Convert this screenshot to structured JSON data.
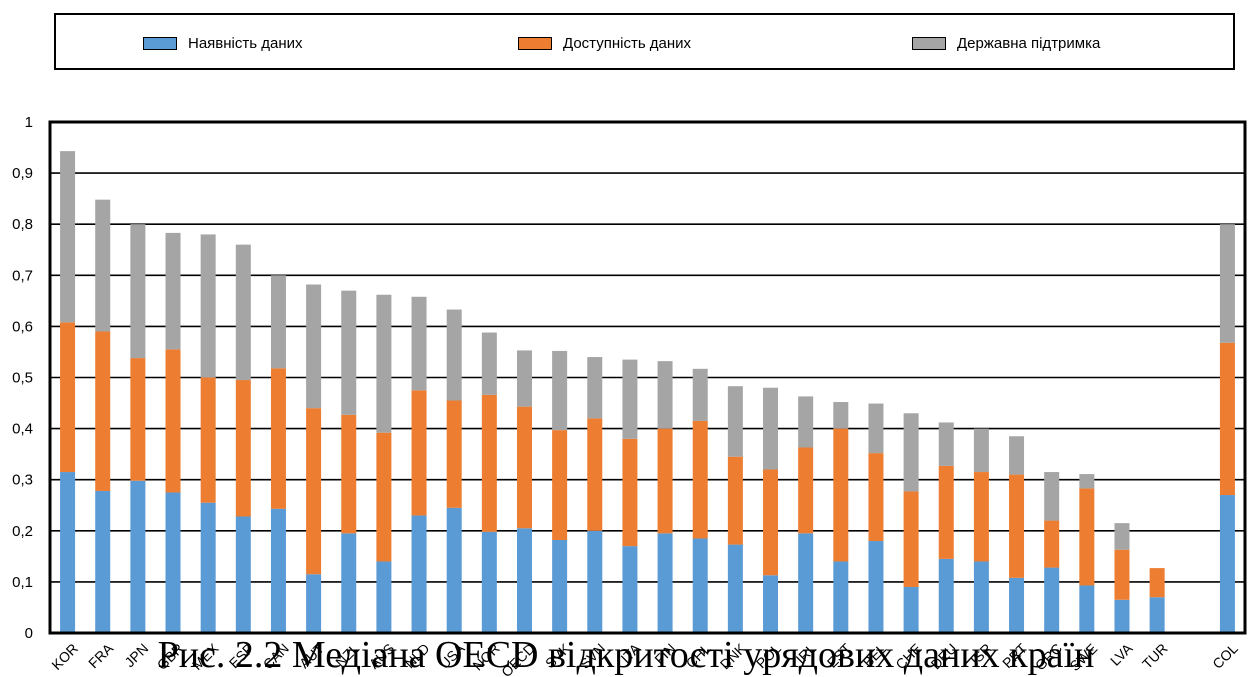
{
  "caption": "Рис. 2.2 Медіана OECD відкритості урядових даних країн",
  "legend": {
    "items": [
      {
        "label": "Наявність даних",
        "color": "#5B9BD5"
      },
      {
        "label": "Доступність даних",
        "color": "#ED7D31"
      },
      {
        "label": "Державна підтримка",
        "color": "#A5A5A5"
      }
    ]
  },
  "chart_data": {
    "type": "bar",
    "stacked": true,
    "categories": [
      "KOR",
      "FRA",
      "JPN",
      "GBR",
      "MEX",
      "ESP",
      "CAN",
      "AUT",
      "NZL",
      "AUS",
      "NLD",
      "USA",
      "NOR",
      "OECD",
      "SVK",
      "SVN",
      "ITA",
      "FIN",
      "CHL",
      "DNK",
      "POL",
      "IRL",
      "EST",
      "BEL",
      "CHE",
      "DEU",
      "ISR",
      "PRT",
      "GRC",
      "SWE",
      "LVA",
      "TUR",
      "",
      "COL"
    ],
    "series": [
      {
        "name": "Наявність даних",
        "color": "#5B9BD5",
        "values": [
          0.315,
          0.278,
          0.298,
          0.275,
          0.255,
          0.228,
          0.243,
          0.115,
          0.195,
          0.14,
          0.23,
          0.245,
          0.198,
          0.205,
          0.182,
          0.2,
          0.17,
          0.195,
          0.185,
          0.173,
          0.113,
          0.195,
          0.14,
          0.18,
          0.09,
          0.145,
          0.14,
          0.108,
          0.128,
          0.093,
          0.065,
          0.07,
          null,
          0.27
        ]
      },
      {
        "name": "Доступність даних",
        "color": "#ED7D31",
        "values": [
          0.293,
          0.312,
          0.24,
          0.28,
          0.245,
          0.267,
          0.275,
          0.325,
          0.232,
          0.252,
          0.245,
          0.21,
          0.268,
          0.238,
          0.215,
          0.22,
          0.21,
          0.205,
          0.23,
          0.172,
          0.207,
          0.168,
          0.26,
          0.172,
          0.187,
          0.182,
          0.175,
          0.202,
          0.092,
          0.19,
          0.098,
          0.057,
          null,
          0.298
        ]
      },
      {
        "name": "Державна підтримка",
        "color": "#A5A5A5",
        "values": [
          0.335,
          0.258,
          0.262,
          0.228,
          0.28,
          0.265,
          0.182,
          0.242,
          0.243,
          0.27,
          0.183,
          0.178,
          0.122,
          0.11,
          0.155,
          0.12,
          0.155,
          0.132,
          0.102,
          0.138,
          0.16,
          0.1,
          0.052,
          0.097,
          0.153,
          0.085,
          0.085,
          0.075,
          0.095,
          0.028,
          0.052,
          0.0,
          null,
          0.232
        ]
      }
    ],
    "ylim": [
      0,
      1
    ],
    "yticks": [
      "0",
      "0,1",
      "0,2",
      "0,3",
      "0,4",
      "0,5",
      "0,6",
      "0,7",
      "0,8",
      "0,9",
      "1"
    ],
    "grid": true,
    "legend_position": "top"
  }
}
